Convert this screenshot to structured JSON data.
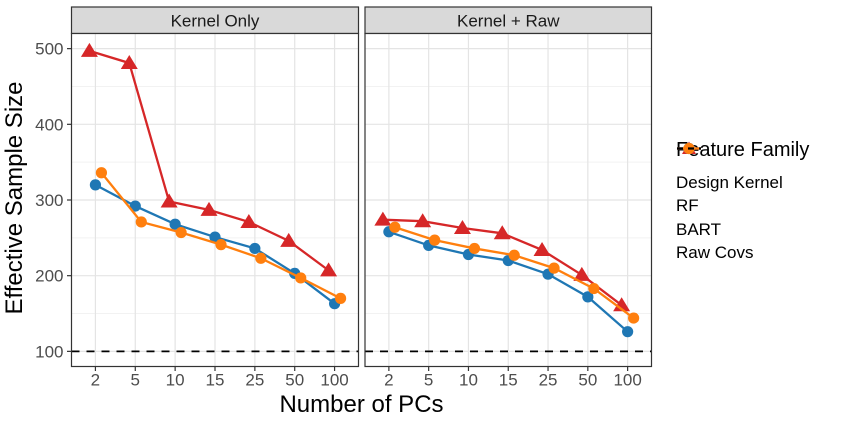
{
  "chart_data": {
    "type": "line",
    "title": "",
    "xlabel": "Number of PCs",
    "ylabel": "Effective Sample Size",
    "x_categories": [
      "2",
      "5",
      "10",
      "15",
      "25",
      "50",
      "100"
    ],
    "y_ticks": [
      100,
      200,
      300,
      400,
      500
    ],
    "y_minor": [
      150,
      250,
      350,
      450
    ],
    "ylim": [
      80,
      520
    ],
    "grid": true,
    "facets": [
      {
        "label": "Kernel Only",
        "hline": 100,
        "series": [
          {
            "name": "Design Kernel",
            "values": [
              497,
              481,
              298,
              287,
              271,
              246,
              207
            ]
          },
          {
            "name": "RF",
            "values": [
              320,
              292,
              268,
              251,
              236,
              203,
              163
            ]
          },
          {
            "name": "BART",
            "values": [
              336,
              271,
              257,
              241,
              223,
              197,
              170
            ]
          }
        ]
      },
      {
        "label": "Kernel + Raw",
        "hline": 100,
        "series": [
          {
            "name": "Design Kernel",
            "values": [
              274,
              272,
              263,
              256,
              234,
              201,
              161
            ]
          },
          {
            "name": "RF",
            "values": [
              258,
              240,
              228,
              220,
              202,
              172,
              126
            ]
          },
          {
            "name": "BART",
            "values": [
              264,
              247,
              236,
              227,
              210,
              183,
              144
            ]
          }
        ]
      }
    ],
    "legend": {
      "title": "Feature Family",
      "position": "right",
      "entries": [
        {
          "label": "Design Kernel",
          "marker": "triangle",
          "color": "#d62728"
        },
        {
          "label": "RF",
          "marker": "circle",
          "color": "#1f77b4"
        },
        {
          "label": "BART",
          "marker": "circle",
          "color": "#ff7f0e"
        },
        {
          "label": "Raw Covs",
          "marker": "dashed-line",
          "color": "#000000"
        }
      ]
    }
  },
  "style": {
    "background": "#ffffff",
    "strip_fill": "#d9d9d9",
    "strip_text_color": "#1a1a1a",
    "panel_border": "#333333",
    "grid_major": "#e4e4e4",
    "grid_minor": "#f2f2f2",
    "tick_color": "#333333",
    "tick_label_color": "#4d4d4d",
    "axis_title_color": "#000000",
    "hline_color": "#000000"
  }
}
